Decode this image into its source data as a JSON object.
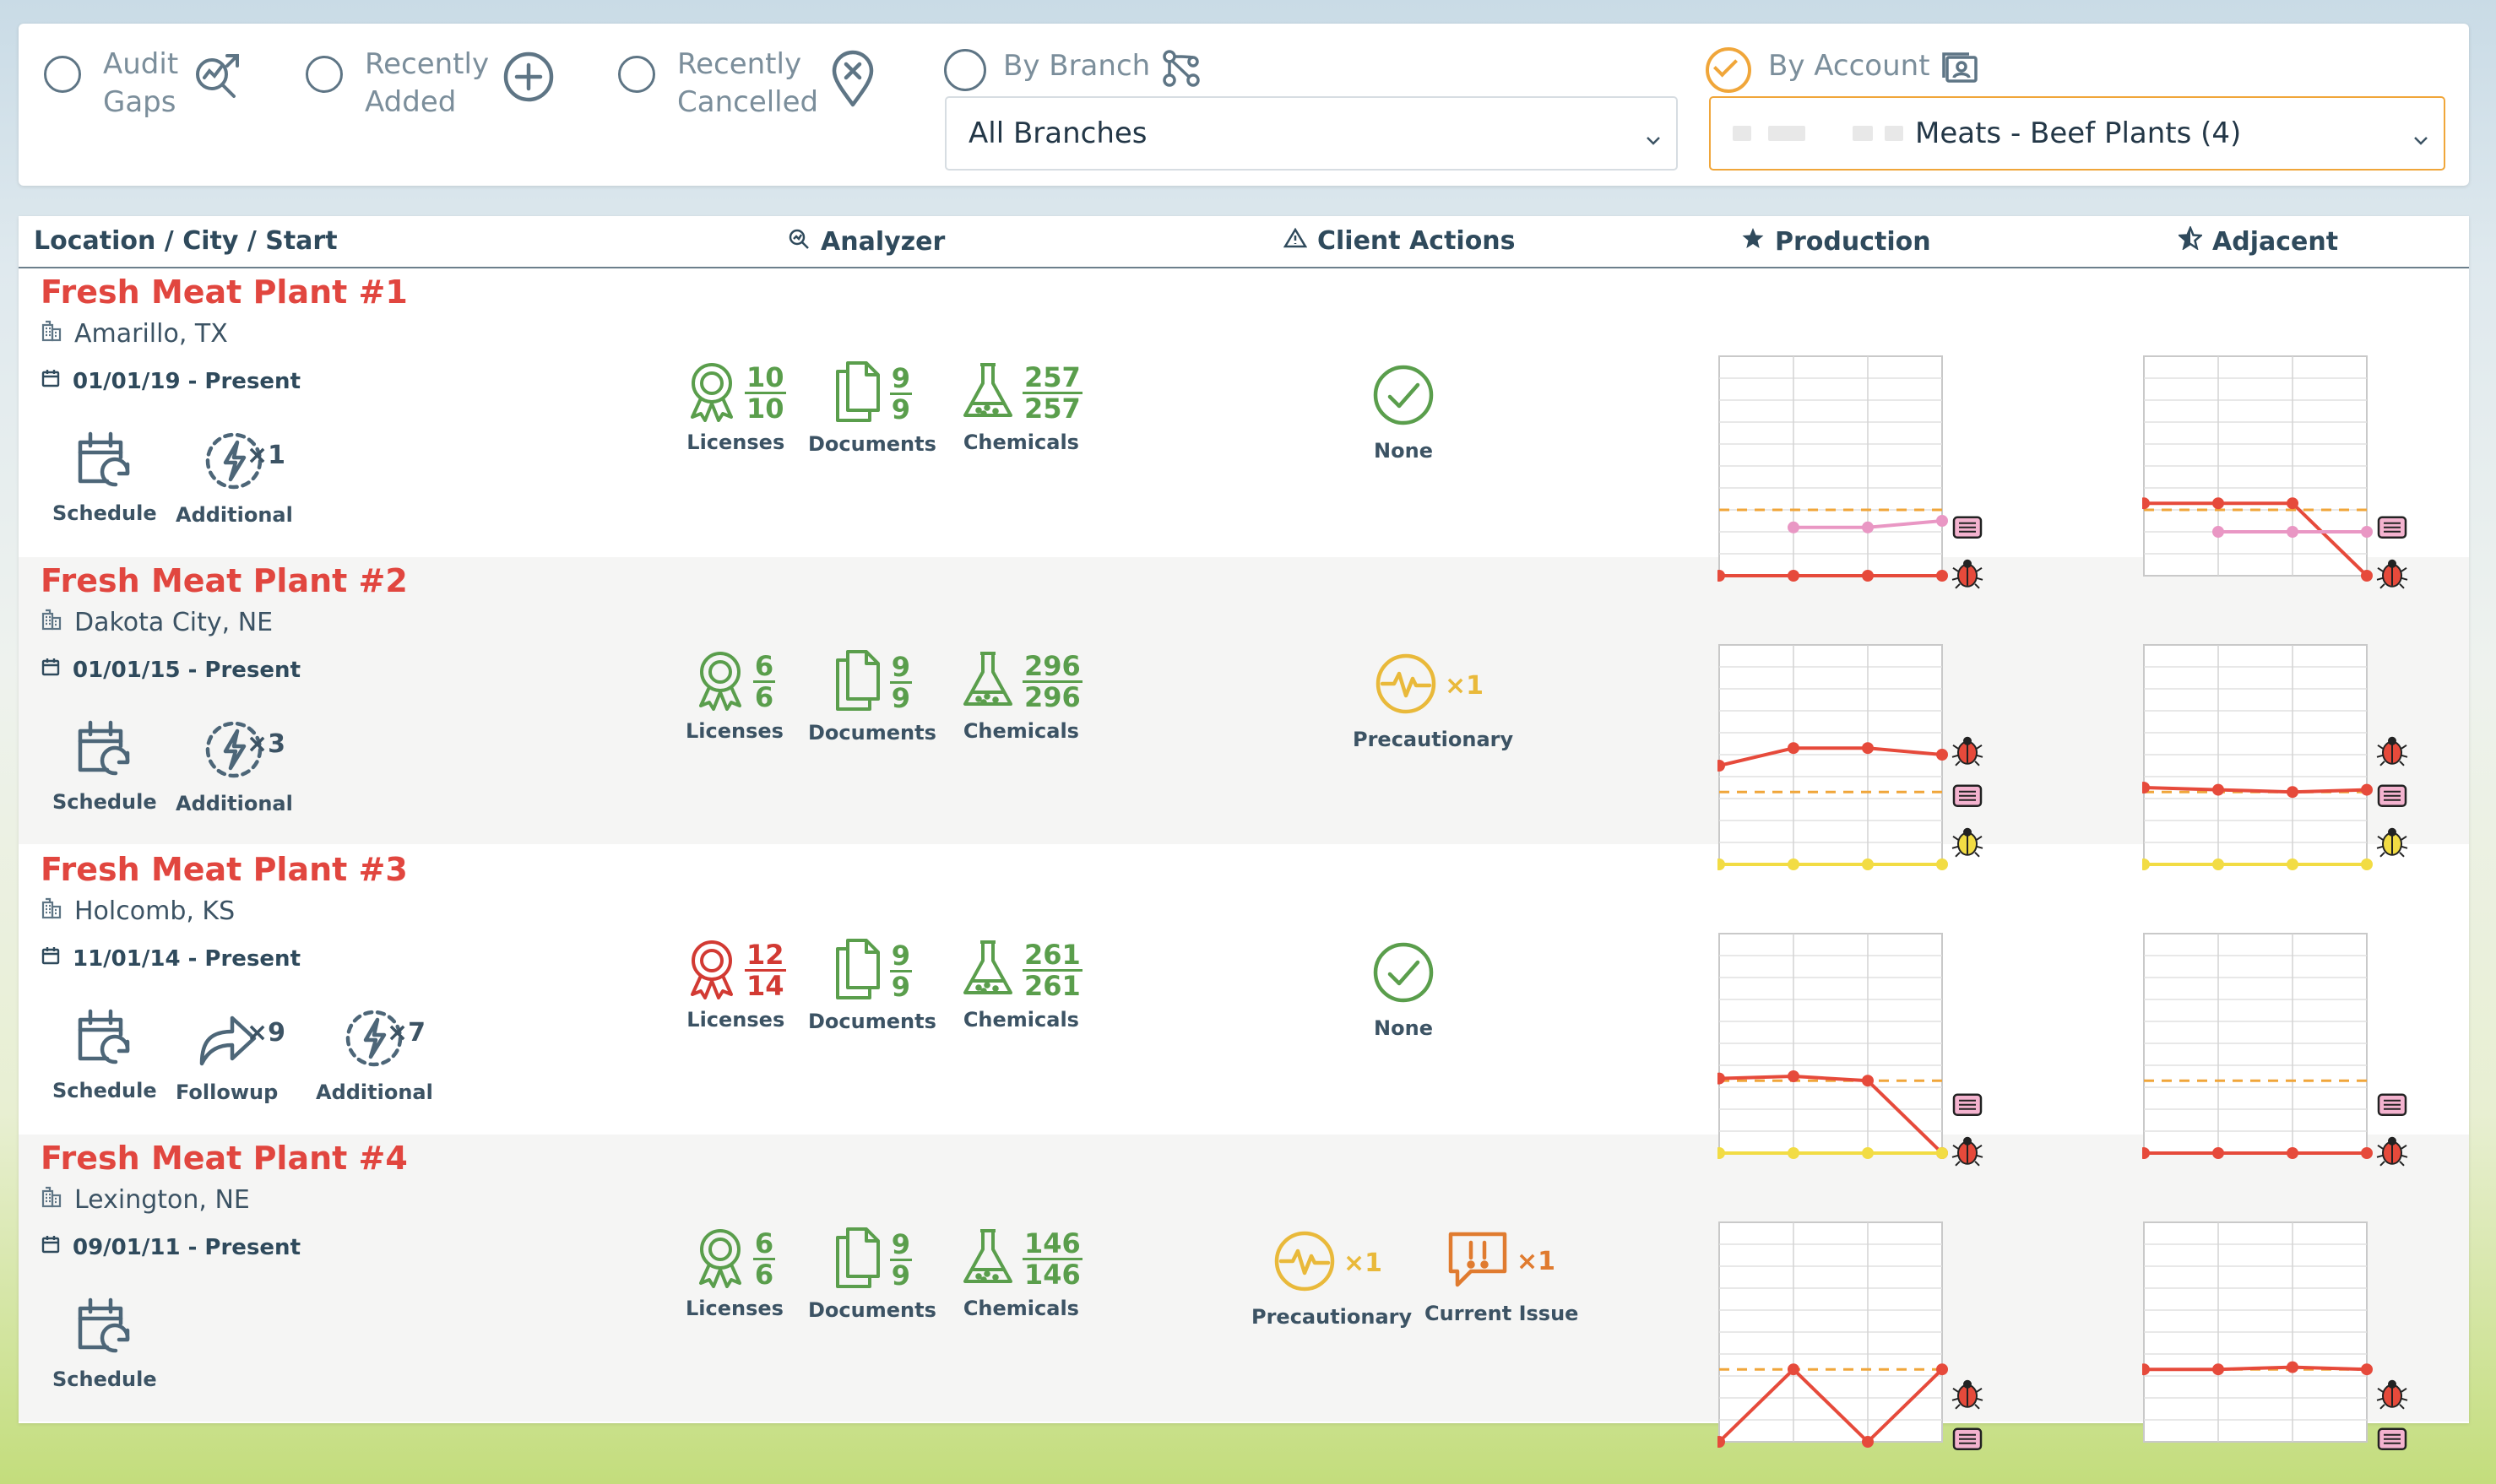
{
  "filters": {
    "audit_gaps": {
      "line1": "Audit",
      "line2": "Gaps"
    },
    "recently_added": {
      "line1": "Recently",
      "line2": "Added"
    },
    "recently_cancelled": {
      "line1": "Recently",
      "line2": "Cancelled"
    },
    "by_branch": {
      "label": "By Branch",
      "value": "All Branches"
    },
    "by_account": {
      "label": "By Account",
      "value": "Meats - Beef Plants (4)",
      "checked": true
    }
  },
  "columns": {
    "location": "Location / City / Start",
    "analyzer": "Analyzer",
    "client_actions": "Client Actions",
    "production": "Production",
    "adjacent": "Adjacent"
  },
  "colors": {
    "name_red": "#e1463f",
    "ok_green": "#5a9e4c",
    "warn_yellow": "#e9b93a",
    "issue_orange": "#e07b2f",
    "accent_orange": "#f0a63a"
  },
  "plants": [
    {
      "name": "Fresh Meat Plant #1",
      "city": "Amarillo, TX",
      "start": "01/01/19 - Present",
      "actions": [
        {
          "icon": "schedule-icon",
          "label": "Schedule"
        },
        {
          "icon": "additional-icon",
          "label": "Additional",
          "count": "×1"
        }
      ],
      "licenses": {
        "num": "10",
        "den": "10",
        "status": "ok",
        "label": "Licenses"
      },
      "documents": {
        "num": "9",
        "den": "9",
        "label": "Documents"
      },
      "chemicals": {
        "num": "257",
        "den": "257",
        "label": "Chemicals"
      },
      "client_actions": [
        {
          "type": "none",
          "label": "None"
        }
      ]
    },
    {
      "name": "Fresh Meat Plant #2",
      "city": "Dakota City, NE",
      "start": "01/01/15 - Present",
      "actions": [
        {
          "icon": "schedule-icon",
          "label": "Schedule"
        },
        {
          "icon": "additional-icon",
          "label": "Additional",
          "count": "×3"
        }
      ],
      "licenses": {
        "num": "6",
        "den": "6",
        "status": "ok",
        "label": "Licenses"
      },
      "documents": {
        "num": "9",
        "den": "9",
        "label": "Documents"
      },
      "chemicals": {
        "num": "296",
        "den": "296",
        "label": "Chemicals"
      },
      "client_actions": [
        {
          "type": "precautionary",
          "label": "Precautionary",
          "count": "×1"
        }
      ]
    },
    {
      "name": "Fresh Meat Plant #3",
      "city": "Holcomb, KS",
      "start": "11/01/14 - Present",
      "actions": [
        {
          "icon": "schedule-icon",
          "label": "Schedule"
        },
        {
          "icon": "followup-icon",
          "label": "Followup",
          "count": "×9"
        },
        {
          "icon": "additional-icon",
          "label": "Additional",
          "count": "×7"
        }
      ],
      "licenses": {
        "num": "12",
        "den": "14",
        "status": "bad",
        "label": "Licenses"
      },
      "documents": {
        "num": "9",
        "den": "9",
        "label": "Documents"
      },
      "chemicals": {
        "num": "261",
        "den": "261",
        "label": "Chemicals"
      },
      "client_actions": [
        {
          "type": "none",
          "label": "None"
        }
      ]
    },
    {
      "name": "Fresh Meat Plant #4",
      "city": "Lexington, NE",
      "start": "09/01/11 - Present",
      "actions": [
        {
          "icon": "schedule-icon",
          "label": "Schedule"
        }
      ],
      "licenses": {
        "num": "6",
        "den": "6",
        "status": "ok",
        "label": "Licenses"
      },
      "documents": {
        "num": "9",
        "den": "9",
        "label": "Documents"
      },
      "chemicals": {
        "num": "146",
        "den": "146",
        "label": "Chemicals"
      },
      "client_actions": [
        {
          "type": "precautionary",
          "label": "Precautionary",
          "count": "×1"
        },
        {
          "type": "current-issue",
          "label": "Current Issue",
          "count": "×1"
        }
      ]
    }
  ],
  "chart_data": [
    {
      "type": "line",
      "plant": "Fresh Meat Plant #1",
      "panel": "Production",
      "threshold": 0.3,
      "series": [
        {
          "color": "#e64a3b",
          "values": [
            0,
            0,
            0,
            0
          ]
        },
        {
          "color": "#e997c4",
          "values": [
            null,
            0.22,
            0.22,
            0.25
          ]
        }
      ],
      "markers": [
        "pink-box",
        "red-bug"
      ]
    },
    {
      "type": "line",
      "plant": "Fresh Meat Plant #1",
      "panel": "Adjacent",
      "threshold": 0.3,
      "series": [
        {
          "color": "#e64a3b",
          "values": [
            0.33,
            0.33,
            0.33,
            0
          ]
        },
        {
          "color": "#e997c4",
          "values": [
            null,
            0.2,
            0.2,
            0.2
          ]
        }
      ],
      "markers": [
        "pink-box",
        "red-bug"
      ]
    },
    {
      "type": "line",
      "plant": "Fresh Meat Plant #2",
      "panel": "Production",
      "threshold": 0.33,
      "series": [
        {
          "color": "#e64a3b",
          "values": [
            0.45,
            0.53,
            0.53,
            0.5
          ]
        },
        {
          "color": "#f2dc44",
          "values": [
            0,
            0,
            0,
            0
          ]
        }
      ],
      "markers": [
        "red-bug",
        "pink-box",
        "yellow-bug"
      ]
    },
    {
      "type": "line",
      "plant": "Fresh Meat Plant #2",
      "panel": "Adjacent",
      "threshold": 0.33,
      "series": [
        {
          "color": "#e64a3b",
          "values": [
            0.35,
            0.34,
            0.33,
            0.34
          ]
        },
        {
          "color": "#f2dc44",
          "values": [
            0,
            0,
            0,
            0
          ]
        }
      ],
      "markers": [
        "red-bug",
        "pink-box",
        "yellow-bug"
      ]
    },
    {
      "type": "line",
      "plant": "Fresh Meat Plant #3",
      "panel": "Production",
      "threshold": 0.33,
      "series": [
        {
          "color": "#e64a3b",
          "values": [
            0.34,
            0.35,
            0.33,
            0
          ]
        },
        {
          "color": "#f2dc44",
          "values": [
            0,
            0,
            0,
            0
          ]
        }
      ],
      "markers": [
        "pink-box",
        "red-bug"
      ]
    },
    {
      "type": "line",
      "plant": "Fresh Meat Plant #3",
      "panel": "Adjacent",
      "threshold": 0.33,
      "series": [
        {
          "color": "#e64a3b",
          "values": [
            0,
            0,
            0,
            0
          ]
        }
      ],
      "markers": [
        "pink-box",
        "red-bug"
      ]
    },
    {
      "type": "line",
      "plant": "Fresh Meat Plant #4",
      "panel": "Production",
      "threshold": 0.33,
      "series": [
        {
          "color": "#e64a3b",
          "values": [
            0,
            0.33,
            0,
            0.33
          ]
        }
      ],
      "markers": [
        "red-bug",
        "pink-box"
      ]
    },
    {
      "type": "line",
      "plant": "Fresh Meat Plant #4",
      "panel": "Adjacent",
      "threshold": 0.33,
      "series": [
        {
          "color": "#e64a3b",
          "values": [
            0.33,
            0.33,
            0.34,
            0.33
          ]
        }
      ],
      "markers": [
        "red-bug",
        "pink-box"
      ]
    }
  ]
}
